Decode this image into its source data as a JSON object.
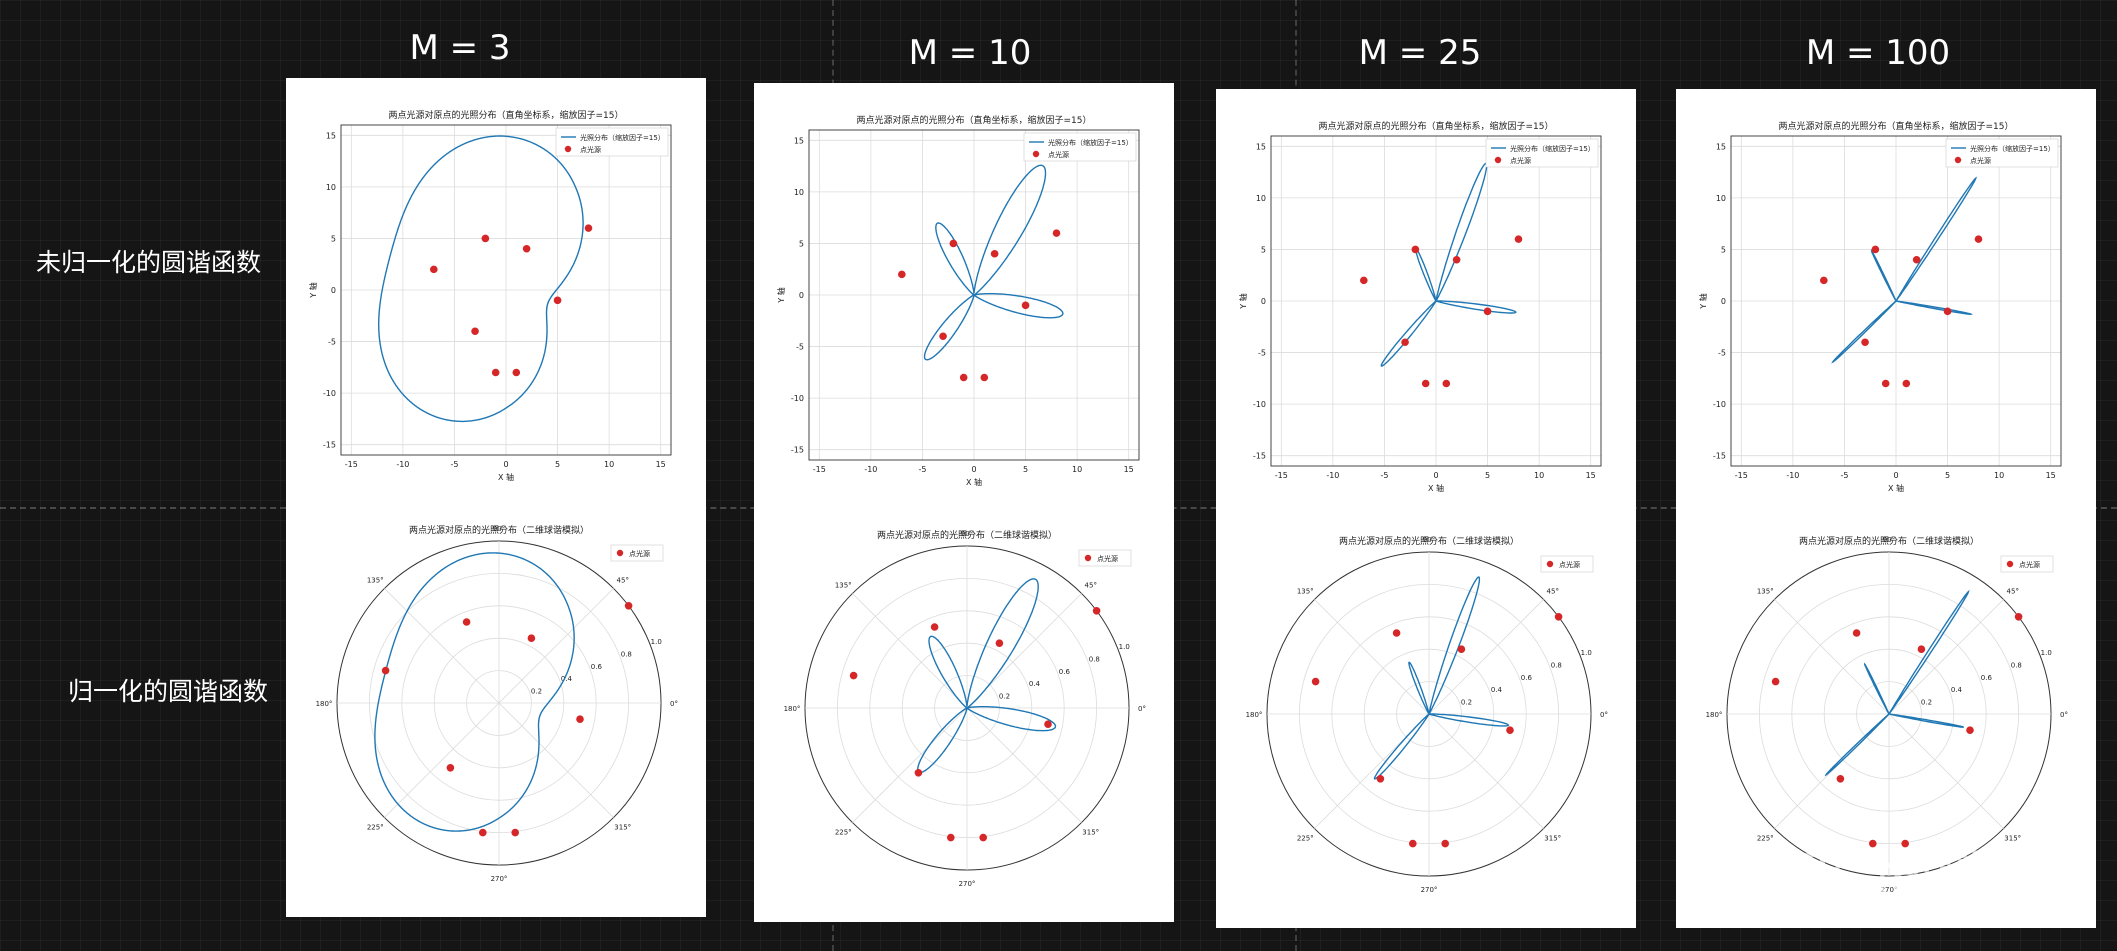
{
  "columns": [
    {
      "title": "M = 3"
    },
    {
      "title": "M = 10"
    },
    {
      "title": "M = 25"
    },
    {
      "title": "M = 100"
    }
  ],
  "rows": [
    {
      "label": "未归一化的圆谐函数"
    },
    {
      "label": "归一化的圆谐函数"
    }
  ],
  "watermark": "知乎 @毅毅",
  "chart_data": [
    {
      "type": "line",
      "panel": "M3-cartesian",
      "title": "两点光源对原点的光照分布（直角坐标系，缩放因子=15）",
      "xlabel": "X 轴",
      "ylabel": "Y 轴",
      "xlim": [
        -16,
        16
      ],
      "ylim": [
        -16,
        16
      ],
      "xticks": [
        -15,
        -10,
        -5,
        0,
        5,
        10,
        15
      ],
      "yticks": [
        -15,
        -10,
        -5,
        0,
        5,
        10,
        15
      ],
      "grid": true,
      "legend": "top-right",
      "series": [
        {
          "name": "光照分布（缩放因子=15）",
          "color": "#1f77b4"
        }
      ],
      "points": {
        "name": "点光源",
        "color": "#d62728",
        "x": [
          -7,
          -2,
          2,
          8,
          -3,
          5,
          -1,
          1
        ],
        "y": [
          2,
          5,
          4,
          6,
          -4,
          -1,
          -8,
          -8
        ]
      }
    },
    {
      "type": "line",
      "panel": "M10-cartesian",
      "title": "两点光源对原点的光照分布（直角坐标系，缩放因子=15）",
      "xlabel": "X 轴",
      "ylabel": "Y 轴",
      "xlim": [
        -16,
        16
      ],
      "ylim": [
        -16,
        16
      ],
      "xticks": [
        -15,
        -10,
        -5,
        0,
        5,
        10,
        15
      ],
      "yticks": [
        -15,
        -10,
        -5,
        0,
        5,
        10,
        15
      ],
      "grid": true,
      "legend": "top-right",
      "series": [
        {
          "name": "光照分布（缩放因子=15）",
          "color": "#1f77b4"
        }
      ],
      "points": {
        "name": "点光源",
        "color": "#d62728",
        "x": [
          -7,
          -2,
          2,
          8,
          -3,
          5,
          -1,
          1
        ],
        "y": [
          2,
          5,
          4,
          6,
          -4,
          -1,
          -8,
          -8
        ]
      }
    },
    {
      "type": "line",
      "panel": "M25-cartesian",
      "title": "两点光源对原点的光照分布（直角坐标系，缩放因子=15）",
      "xlabel": "X 轴",
      "ylabel": "Y 轴",
      "xlim": [
        -16,
        16
      ],
      "ylim": [
        -16,
        16
      ],
      "xticks": [
        -15,
        -10,
        -5,
        0,
        5,
        10,
        15
      ],
      "yticks": [
        -15,
        -10,
        -5,
        0,
        5,
        10,
        15
      ],
      "grid": true,
      "legend": "top-right",
      "series": [
        {
          "name": "光照分布（缩放因子=15）",
          "color": "#1f77b4"
        }
      ],
      "points": {
        "name": "点光源",
        "color": "#d62728",
        "x": [
          -7,
          -2,
          2,
          8,
          -3,
          5,
          -1,
          1
        ],
        "y": [
          2,
          5,
          4,
          6,
          -4,
          -1,
          -8,
          -8
        ]
      }
    },
    {
      "type": "line",
      "panel": "M100-cartesian",
      "title": "两点光源对原点的光照分布（直角坐标系，缩放因子=15）",
      "xlabel": "X 轴",
      "ylabel": "Y 轴",
      "xlim": [
        -16,
        16
      ],
      "ylim": [
        -16,
        16
      ],
      "xticks": [
        -15,
        -10,
        -5,
        0,
        5,
        10,
        15
      ],
      "yticks": [
        -15,
        -10,
        -5,
        0,
        5,
        10,
        15
      ],
      "grid": true,
      "legend": "top-right",
      "series": [
        {
          "name": "光照分布（缩放因子=15）",
          "color": "#1f77b4"
        }
      ],
      "points": {
        "name": "点光源",
        "color": "#d62728",
        "x": [
          -7,
          -2,
          2,
          8,
          -3,
          5,
          -1,
          1
        ],
        "y": [
          2,
          5,
          4,
          6,
          -4,
          -1,
          -8,
          -8
        ]
      }
    },
    {
      "type": "line",
      "panel": "M3-polar",
      "title": "两点光源对原点的光照分布（二维球谐模拟）",
      "rticks": [
        0.2,
        0.4,
        0.6,
        0.8,
        1.0
      ],
      "thetaticks": [
        "0°",
        "45°",
        "90°",
        "135°",
        "180°",
        "225°",
        "270°",
        "315°"
      ],
      "legend": "top-right",
      "points": {
        "name": "点光源",
        "color": "#d62728"
      }
    },
    {
      "type": "line",
      "panel": "M10-polar",
      "title": "两点光源对原点的光照分布（二维球谐模拟）",
      "rticks": [
        0.2,
        0.4,
        0.6,
        0.8,
        1.0
      ],
      "thetaticks": [
        "0°",
        "45°",
        "90°",
        "135°",
        "180°",
        "225°",
        "270°",
        "315°"
      ],
      "legend": "top-right",
      "points": {
        "name": "点光源",
        "color": "#d62728"
      }
    },
    {
      "type": "line",
      "panel": "M25-polar",
      "title": "两点光源对原点的光照分布（二维球谐模拟）",
      "rticks": [
        0.2,
        0.4,
        0.6,
        0.8,
        1.0
      ],
      "thetaticks": [
        "0°",
        "45°",
        "90°",
        "135°",
        "180°",
        "225°",
        "270°",
        "315°"
      ],
      "legend": "top-right",
      "points": {
        "name": "点光源",
        "color": "#d62728"
      }
    },
    {
      "type": "line",
      "panel": "M100-polar",
      "title": "两点光源对原点的光照分布（二维球谐模拟）",
      "rticks": [
        0.2,
        0.4,
        0.6,
        0.8,
        1.0
      ],
      "thetaticks": [
        "0°",
        "45°",
        "90°",
        "135°",
        "180°",
        "225°",
        "270°",
        "315°"
      ],
      "legend": "top-right",
      "points": {
        "name": "点光源",
        "color": "#d62728"
      }
    }
  ]
}
